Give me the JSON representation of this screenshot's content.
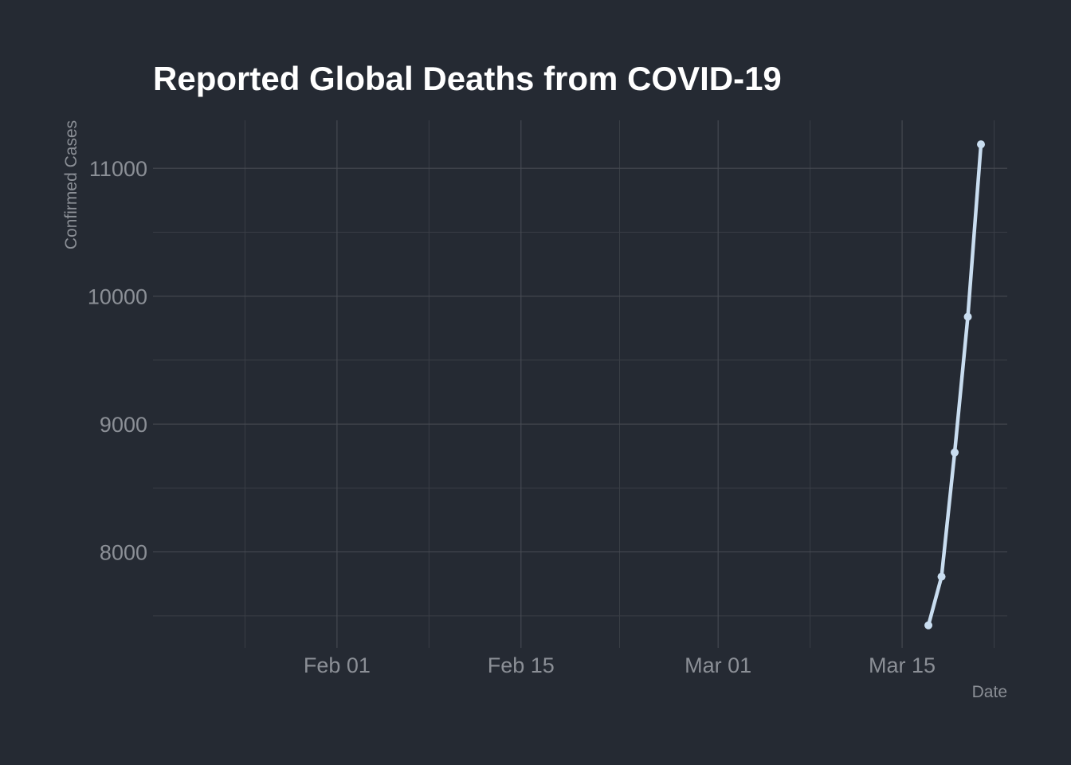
{
  "chart_data": {
    "type": "line",
    "title": "Reported Global Deaths from COVID-19",
    "xlabel": "Date",
    "ylabel": "Confirmed Cases",
    "x_axis_type": "date",
    "xlim": [
      "2020-01-18",
      "2020-03-23"
    ],
    "ylim": [
      7250,
      11375
    ],
    "x_ticks": [
      {
        "date": "2020-02-01",
        "label": "Feb 01"
      },
      {
        "date": "2020-02-15",
        "label": "Feb 15"
      },
      {
        "date": "2020-03-01",
        "label": "Mar 01"
      },
      {
        "date": "2020-03-15",
        "label": "Mar 15"
      }
    ],
    "y_ticks": [
      8000,
      9000,
      10000,
      11000
    ],
    "grid": true,
    "series": [
      {
        "x": [
          "2020-03-17",
          "2020-03-18",
          "2020-03-19",
          "2020-03-20",
          "2020-03-21"
        ],
        "values": [
          7426,
          7807,
          8778,
          9839,
          11187
        ]
      }
    ],
    "colors": {
      "background": "#252a33",
      "line": "#c9ddf0",
      "grid_major": "#474b53",
      "grid_minor": "#3a3e46",
      "title": "#ffffff",
      "labels": "#8b8f96"
    }
  }
}
